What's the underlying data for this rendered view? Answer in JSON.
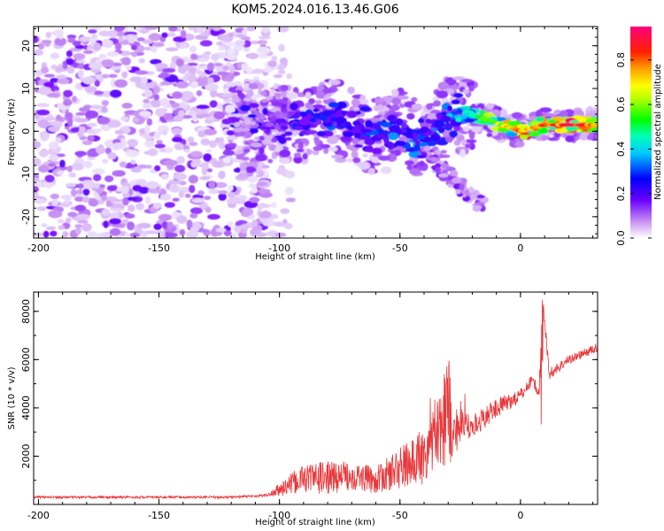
{
  "title": "KOM5.2024.016.13.46.G06",
  "colors": {
    "snr_line": "#e8373a",
    "axes": "#000000"
  },
  "chart_data": [
    {
      "type": "heatmap",
      "xlabel": "Height of straight line (km)",
      "ylabel": "Frequency (Hz)",
      "xlim": [
        -202,
        32
      ],
      "ylim": [
        -25,
        24.5
      ],
      "xticks": [
        -200,
        -150,
        -100,
        -50,
        0
      ],
      "yticks": [
        -20,
        -10,
        0,
        10,
        20
      ],
      "colorbar": {
        "label": "Normalized spectral amplitude",
        "range": [
          0,
          0.95
        ],
        "ticks": [
          "0.0",
          "0.2",
          "0.4",
          "0.6",
          "0.8"
        ],
        "colormap": "gist_rainbow_r (white→violet→blue→cyan→green→yellow→orange→red→magenta)"
      },
      "ridge": {
        "description": "dominant frequency ridge from x≈-120 to x≈32",
        "x": [
          -120,
          -100,
          -90,
          -80,
          -70,
          -60,
          -50,
          -40,
          -30,
          -20,
          -10,
          0,
          10,
          20,
          32
        ],
        "freq_hz": [
          2.5,
          1,
          2,
          3,
          1.5,
          -1,
          1,
          -2,
          3.5,
          4,
          2,
          0,
          1.5,
          1.5,
          1.5
        ],
        "peak_amplitude": [
          0.05,
          0.2,
          0.3,
          0.35,
          0.3,
          0.35,
          0.4,
          0.4,
          0.45,
          0.5,
          0.7,
          0.85,
          0.9,
          0.95,
          0.95
        ]
      },
      "noise_region": {
        "x": [
          -202,
          -105
        ],
        "amplitude": "0.0-0.15",
        "freq_range_hz": [
          -25,
          24.5
        ]
      }
    },
    {
      "type": "line",
      "xlabel": "Height of straight line (km)",
      "ylabel": "SNR (10 * v/v)",
      "xlim": [
        -202,
        32
      ],
      "ylim": [
        0,
        8800
      ],
      "xticks": [
        -200,
        -150,
        -100,
        -50,
        0
      ],
      "yticks": [
        2000,
        4000,
        6000,
        8000
      ],
      "series": [
        {
          "envelope_x": [
            -202,
            -120,
            -105,
            -100,
            -90,
            -80,
            -70,
            -60,
            -50,
            -40,
            -35,
            -30,
            -25,
            -20,
            -10,
            0,
            5,
            8,
            9,
            12,
            20,
            32
          ],
          "envelope_y": [
            300,
            300,
            380,
            600,
            1100,
            1100,
            1200,
            1000,
            1500,
            2000,
            3000,
            3000,
            3200,
            3200,
            4000,
            4500,
            5200,
            4500,
            8700,
            5400,
            6000,
            6500
          ],
          "noise_amplitude": [
            50,
            50,
            60,
            300,
            600,
            700,
            600,
            550,
            900,
            1200,
            1400,
            1600,
            700,
            500,
            400,
            300,
            250,
            250,
            200,
            250,
            200,
            180
          ]
        }
      ]
    }
  ]
}
